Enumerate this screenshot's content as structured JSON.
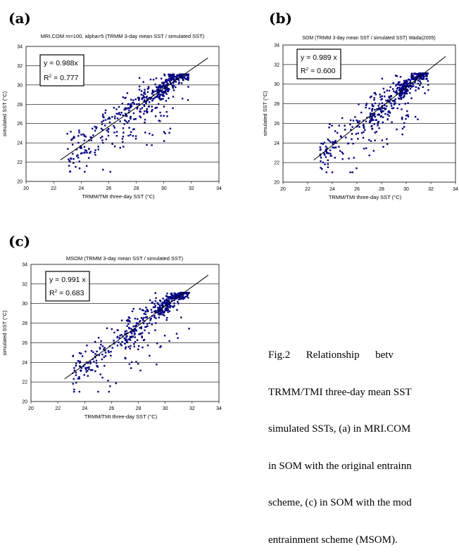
{
  "panel_labels": [
    "(a)",
    "(b)",
    "(c)"
  ],
  "caption_lines": [
    "Fig.2      Relationship      betv",
    "TRMM/TMI three-day mean SST",
    "simulated SSTs, (a) in MRI.COM",
    "in SOM with the original entrainn",
    "scheme, (c) in SOM with the mod",
    "entrainment scheme (MSOM)."
  ],
  "colors": {
    "point": "#000080",
    "line": "#000000",
    "grid": "#000000",
    "border": "#000000"
  },
  "chart_data": [
    {
      "type": "scatter",
      "title": "MRI.COM m=100, alpha=5 (TRMM 3-day mean SST / simulated SST)",
      "xlabel": "TRMM/TMI three-day SST (°C)",
      "ylabel": "simulated SST (°C)",
      "xlim": [
        20,
        34
      ],
      "ylim": [
        20,
        34
      ],
      "xticks": [
        20,
        22,
        24,
        26,
        28,
        30,
        32,
        34
      ],
      "yticks": [
        20,
        22,
        24,
        26,
        28,
        30,
        32,
        34
      ],
      "grid": "horizontal",
      "fit_equation": "y = 0.988x",
      "r2_label": "R",
      "r2_exp": "2",
      "r2_value": " = 0.777",
      "slope": 0.988,
      "fit_x_range": [
        22.5,
        33.2
      ],
      "points_generated": 520,
      "spread": 1.1,
      "seed": 11
    },
    {
      "type": "scatter",
      "title": "SOM (TRMM 3-day mean SST / simulated SST) Wada(2005)",
      "xlabel": "TRMM/TMI three-day SST (°C)",
      "ylabel": "simulated SST (°C)",
      "xlim": [
        20,
        34
      ],
      "ylim": [
        20,
        34
      ],
      "xticks": [
        20,
        22,
        24,
        26,
        28,
        30,
        32,
        34
      ],
      "yticks": [
        20,
        22,
        24,
        26,
        28,
        30,
        32,
        34
      ],
      "grid": "horizontal",
      "fit_equation": "y = 0.989 x",
      "r2_label": "R",
      "r2_exp": "2",
      "r2_value": " = 0.600",
      "slope": 0.989,
      "fit_x_range": [
        22.5,
        33.2
      ],
      "points_generated": 520,
      "spread": 0.9,
      "seed": 23
    },
    {
      "type": "scatter",
      "title": "MSOM (TRMM 3-day mean SST / simulated SST)",
      "xlabel": "TRMM/TMI three-day SST (°C)",
      "ylabel": "simulated SST (°C)",
      "xlim": [
        20,
        34
      ],
      "ylim": [
        20,
        34
      ],
      "xticks": [
        20,
        22,
        24,
        26,
        28,
        30,
        32,
        34
      ],
      "yticks": [
        20,
        22,
        24,
        26,
        28,
        30,
        32,
        34
      ],
      "grid": "horizontal",
      "fit_equation": "y = 0.991 x",
      "r2_label": "R",
      "r2_exp": "2",
      "r2_value": " = 0.683",
      "slope": 0.991,
      "fit_x_range": [
        22.5,
        33.2
      ],
      "points_generated": 520,
      "spread": 0.85,
      "seed": 37
    }
  ]
}
